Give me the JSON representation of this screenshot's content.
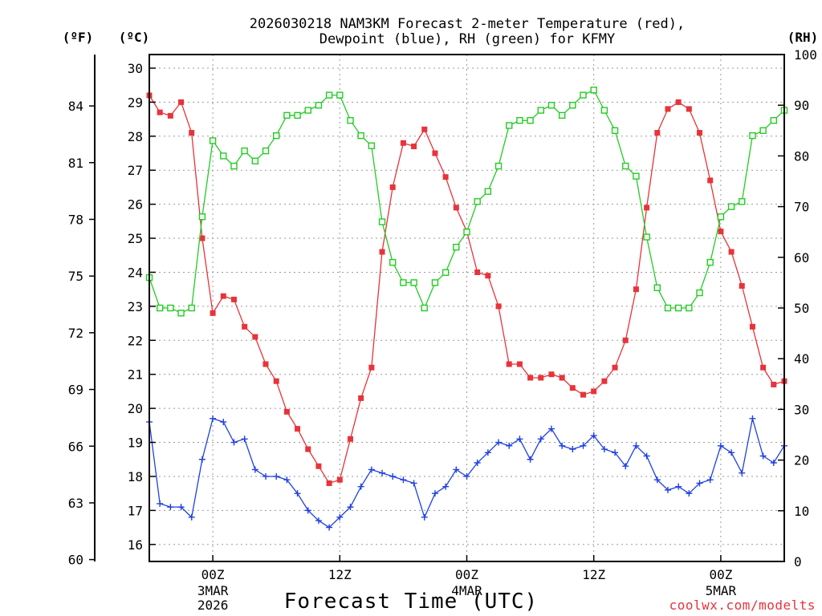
{
  "chart_data": {
    "type": "line",
    "title_line1": "2026030218 NAM3KM Forecast 2-meter Temperature (red),",
    "title_line2": "Dewpoint (blue), RH (green) for KFMY",
    "xlabel": "Forecast Time (UTC)",
    "credit": "coolwx.com/modelts",
    "units": {
      "fahrenheit": "(ºF)",
      "celsius": "(ºC)",
      "rh": "(RH)"
    },
    "celsius_axis": {
      "range": [
        15.5,
        30.4
      ],
      "ticks": [
        "16",
        "17",
        "18",
        "19",
        "20",
        "21",
        "22",
        "23",
        "24",
        "25",
        "26",
        "27",
        "28",
        "29",
        "30"
      ]
    },
    "fahrenheit_axis": {
      "ticks": [
        "60",
        "63",
        "66",
        "69",
        "72",
        "75",
        "78",
        "81",
        "84"
      ]
    },
    "rh_axis": {
      "range": [
        0,
        100
      ],
      "ticks": [
        "0",
        "10",
        "20",
        "30",
        "40",
        "50",
        "60",
        "70",
        "80",
        "90",
        "100"
      ]
    },
    "x_range_hours": [
      -6,
      54
    ],
    "x_ticks": [
      {
        "hour": 0,
        "label": "00Z",
        "sub1": "3MAR",
        "sub2": "2026"
      },
      {
        "hour": 12,
        "label": "12Z",
        "sub1": "",
        "sub2": ""
      },
      {
        "hour": 24,
        "label": "00Z",
        "sub1": "4MAR",
        "sub2": ""
      },
      {
        "hour": 36,
        "label": "12Z",
        "sub1": "",
        "sub2": ""
      },
      {
        "hour": 48,
        "label": "00Z",
        "sub1": "5MAR",
        "sub2": ""
      }
    ],
    "series": [
      {
        "name": "2-meter Temperature (°C)",
        "color": "#e8333a",
        "marker": "filled-square",
        "axis": "celsius",
        "start_hour": -6,
        "step_hours": 1,
        "values": [
          29.2,
          28.7,
          28.6,
          29.0,
          28.1,
          25.0,
          22.8,
          23.3,
          23.2,
          22.4,
          22.1,
          21.3,
          20.8,
          19.9,
          19.4,
          18.8,
          18.3,
          17.8,
          17.9,
          19.1,
          20.3,
          21.2,
          24.6,
          26.5,
          27.8,
          27.7,
          28.2,
          27.5,
          26.8,
          25.9,
          25.2,
          24.0,
          23.9,
          23.0,
          21.3,
          21.3,
          20.9,
          20.9,
          21.0,
          20.9,
          20.6,
          20.4,
          20.5,
          20.8,
          21.2,
          22.0,
          23.5,
          25.9,
          28.1,
          28.8,
          29.0,
          28.8,
          28.1,
          26.7,
          25.2,
          24.6,
          23.6,
          22.4,
          21.2,
          20.7,
          20.8
        ]
      },
      {
        "name": "Dewpoint (°C)",
        "color": "#2040e0",
        "marker": "plus",
        "axis": "celsius",
        "start_hour": -6,
        "step_hours": 1,
        "values": [
          19.6,
          17.2,
          17.1,
          17.1,
          16.8,
          18.5,
          19.7,
          19.6,
          19.0,
          19.1,
          18.2,
          18.0,
          18.0,
          17.9,
          17.5,
          17.0,
          16.7,
          16.5,
          16.8,
          17.1,
          17.7,
          18.2,
          18.1,
          18.0,
          17.9,
          17.8,
          16.8,
          17.5,
          17.7,
          18.2,
          18.0,
          18.4,
          18.7,
          19.0,
          18.9,
          19.1,
          18.5,
          19.1,
          19.4,
          18.9,
          18.8,
          18.9,
          19.2,
          18.8,
          18.7,
          18.3,
          18.9,
          18.6,
          17.9,
          17.6,
          17.7,
          17.5,
          17.8,
          17.9,
          18.9,
          18.7,
          18.1,
          19.7,
          18.6,
          18.4,
          18.9
        ]
      },
      {
        "name": "RH (%)",
        "color": "#22cc22",
        "marker": "open-square",
        "axis": "rh",
        "start_hour": -6,
        "step_hours": 1,
        "values": [
          56,
          50,
          50,
          49,
          50,
          68,
          83,
          80,
          78,
          81,
          79,
          81,
          84,
          88,
          88,
          89,
          90,
          92,
          92,
          87,
          84,
          82,
          67,
          59,
          55,
          55,
          50,
          55,
          57,
          62,
          65,
          71,
          73,
          78,
          86,
          87,
          87,
          89,
          90,
          88,
          90,
          92,
          93,
          89,
          85,
          78,
          76,
          64,
          54,
          50,
          50,
          50,
          53,
          59,
          68,
          70,
          71,
          84,
          85,
          87,
          89
        ]
      }
    ]
  }
}
